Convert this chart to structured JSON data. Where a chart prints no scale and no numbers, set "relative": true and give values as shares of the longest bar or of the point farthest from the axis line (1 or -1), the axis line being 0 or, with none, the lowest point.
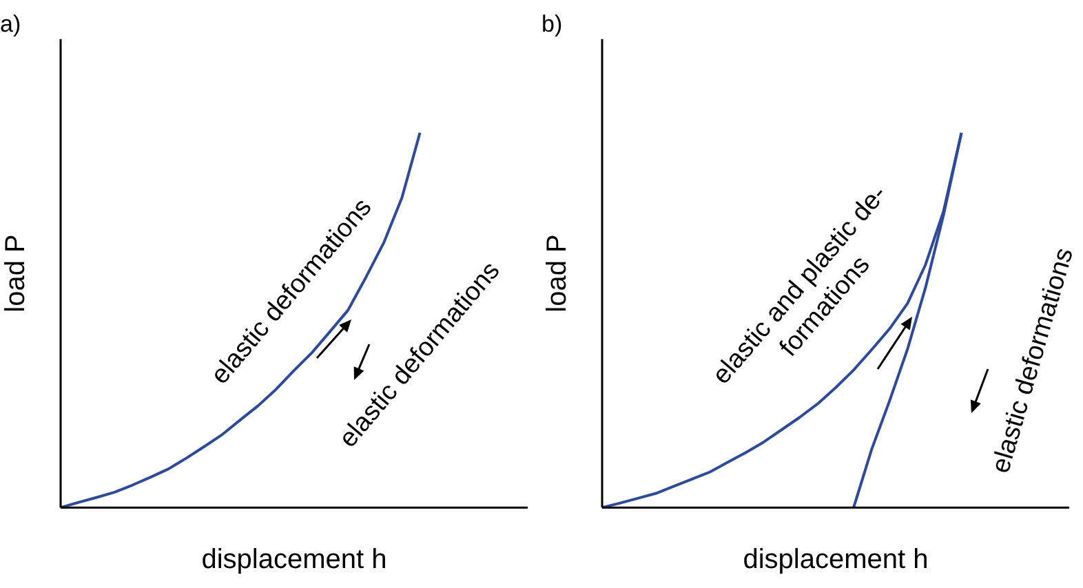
{
  "chart_data": [
    {
      "type": "line",
      "title": "a)",
      "xlabel": "displacement h",
      "ylabel": "load P",
      "relative": true,
      "grid": false,
      "legend": false,
      "marker": "none",
      "line_style": "solid",
      "categories": [
        null,
        null,
        null,
        null,
        null,
        null,
        null,
        null,
        null,
        null,
        null,
        null,
        null,
        null,
        null,
        null,
        null,
        null,
        null,
        null,
        null,
        null,
        null,
        null,
        null,
        null,
        null
      ],
      "series": [
        {
          "color": "#2e4a9a",
          "values": [
            0,
            0.014,
            0.027,
            0.041,
            0.06,
            0.081,
            0.103,
            0.132,
            0.163,
            0.195,
            0.234,
            0.272,
            0.316,
            0.366,
            0.414,
            0.47,
            0.527,
            0.615,
            0.708,
            0.827,
            1,
            null,
            null,
            null,
            null,
            null,
            null
          ]
        }
      ],
      "annotations": [
        "elastic deformations",
        "elastic deformations"
      ]
    },
    {
      "type": "line",
      "title": "b)",
      "xlabel": "displacement h",
      "ylabel": "load P",
      "relative": true,
      "grid": false,
      "legend": false,
      "marker": "none",
      "line_style": "solid",
      "categories": [
        null,
        null,
        null,
        null,
        null,
        null,
        null,
        null,
        null,
        null,
        null,
        null,
        null,
        null,
        null,
        null,
        null,
        null,
        null,
        null,
        null,
        null,
        null,
        null,
        null,
        null,
        null
      ],
      "series": [
        {
          "color": "#2e4a9a",
          "values": [
            0,
            0.012,
            0.025,
            0.038,
            0.057,
            0.076,
            0.095,
            0.121,
            0.147,
            0.175,
            0.208,
            0.241,
            0.277,
            0.32,
            0.367,
            0.421,
            0.477,
            0.545,
            0.648,
            0.79,
            1,
            null,
            null,
            null,
            null,
            null,
            null
          ]
        },
        {
          "color": "#2e4a9a",
          "values": [
            null,
            null,
            null,
            null,
            null,
            null,
            null,
            null,
            null,
            null,
            null,
            null,
            null,
            null,
            0,
            0.155,
            0.285,
            0.423,
            0.587,
            0.78,
            1,
            null,
            null,
            null,
            null,
            null,
            null
          ]
        }
      ],
      "annotations": [
        "elastic and plastic de-\nformations",
        "elastic deformations"
      ]
    }
  ]
}
